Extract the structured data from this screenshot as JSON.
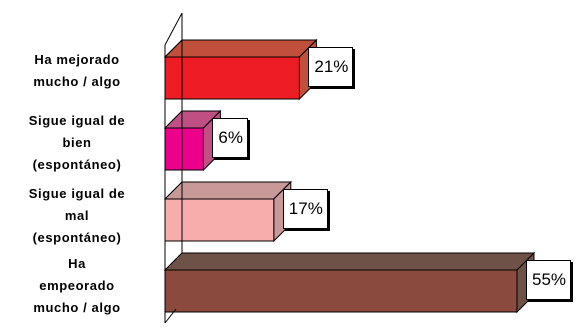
{
  "chart_data": {
    "type": "bar",
    "orientation": "horizontal",
    "style": "3d",
    "categories": [
      "Ha mejorado mucho / algo",
      "Sigue igual de bien (espontáneo)",
      "Sigue igual de mal (espontáneo)",
      "Ha empeorado mucho / algo"
    ],
    "label_lines": [
      [
        "Ha mejorado",
        "mucho / algo"
      ],
      [
        "Sigue igual de",
        "bien",
        "(espontáneo)"
      ],
      [
        "Sigue igual de",
        "mal",
        "(espontáneo)"
      ],
      [
        "Ha",
        "empeorado",
        "mucho / algo"
      ]
    ],
    "values": [
      21,
      6,
      17,
      55
    ],
    "value_labels": [
      "21%",
      "6%",
      "17%",
      "55%"
    ],
    "colors": [
      {
        "front": "#ee1c25",
        "top": "#c0503b"
      },
      {
        "front": "#ec008c",
        "top": "#c04f84"
      },
      {
        "front": "#f8adad",
        "top": "#c99999"
      },
      {
        "front": "#8b4a3e",
        "top": "#6e5147"
      }
    ],
    "xlim": [
      0,
      55
    ],
    "title": "",
    "xlabel": "",
    "ylabel": "",
    "grid": false,
    "legend": "none"
  }
}
